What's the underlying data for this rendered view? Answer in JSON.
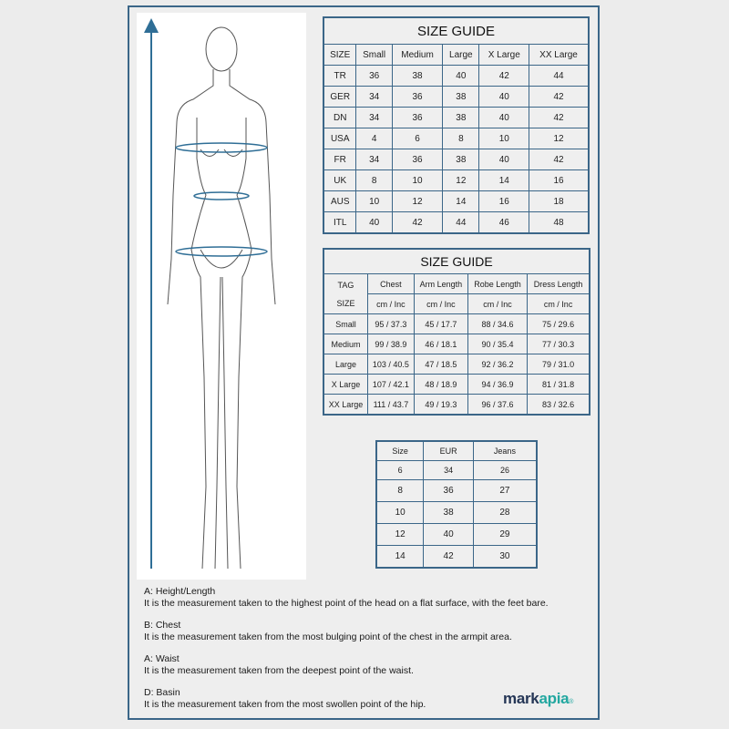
{
  "colors": {
    "border": "#3b6688",
    "logo_dark": "#253656",
    "logo_teal": "#22a7a0"
  },
  "table1": {
    "title": "SIZE GUIDE",
    "headers": [
      "SIZE",
      "Small",
      "Medium",
      "Large",
      "X Large",
      "XX Large"
    ],
    "rows": [
      [
        "TR",
        "36",
        "38",
        "40",
        "42",
        "44"
      ],
      [
        "GER",
        "34",
        "36",
        "38",
        "40",
        "42"
      ],
      [
        "DN",
        "34",
        "36",
        "38",
        "40",
        "42"
      ],
      [
        "USA",
        "4",
        "6",
        "8",
        "10",
        "12"
      ],
      [
        "FR",
        "34",
        "36",
        "38",
        "40",
        "42"
      ],
      [
        "UK",
        "8",
        "10",
        "12",
        "14",
        "16"
      ],
      [
        "AUS",
        "10",
        "12",
        "14",
        "16",
        "18"
      ],
      [
        "ITL",
        "40",
        "42",
        "44",
        "46",
        "48"
      ]
    ]
  },
  "table2": {
    "title": "SIZE GUIDE",
    "tag_label": "TAG",
    "size_label": "SIZE",
    "headers": [
      "Chest",
      "Arm Length",
      "Robe Length",
      "Dress Length"
    ],
    "units": [
      "cm / Inc",
      "cm / Inc",
      "cm / Inc",
      "cm / Inc"
    ],
    "rows": [
      [
        "Small",
        "95 / 37.3",
        "45 / 17.7",
        "88 / 34.6",
        "75 / 29.6"
      ],
      [
        "Medium",
        "99 / 38.9",
        "46 / 18.1",
        "90 / 35.4",
        "77 / 30.3"
      ],
      [
        "Large",
        "103 / 40.5",
        "47 / 18.5",
        "92 / 36.2",
        "79 / 31.0"
      ],
      [
        "X Large",
        "107 / 42.1",
        "48 / 18.9",
        "94 / 36.9",
        "81 / 31.8"
      ],
      [
        "XX Large",
        "111 / 43.7",
        "49 / 19.3",
        "96 / 37.6",
        "83 / 32.6"
      ]
    ]
  },
  "table3": {
    "headers": [
      "Size",
      "EUR",
      "Jeans"
    ],
    "rows": [
      [
        "6",
        "34",
        "26"
      ],
      [
        "8",
        "36",
        "27"
      ],
      [
        "10",
        "38",
        "28"
      ],
      [
        "12",
        "40",
        "29"
      ],
      [
        "14",
        "42",
        "30"
      ]
    ]
  },
  "notes": [
    {
      "title": "A: Height/Length",
      "text": "It is the measurement taken to the highest point of the head on a flat surface, with the feet bare."
    },
    {
      "title": "B: Chest",
      "text": "It is the measurement taken from the most bulging point of the chest in the armpit area."
    },
    {
      "title": "A: Waist",
      "text": "It is the measurement taken from the deepest point of the waist."
    },
    {
      "title": "D: Basin",
      "text": "It is the measurement taken from the most swollen point of the hip."
    }
  ],
  "logo": {
    "part1": "mark",
    "part2": "apia",
    "reg": "®"
  }
}
